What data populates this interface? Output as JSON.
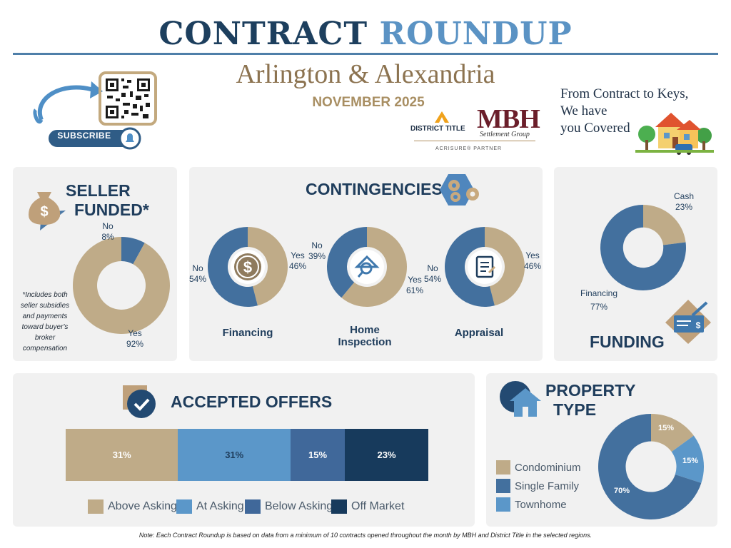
{
  "header": {
    "title_part1": "CONTRACT",
    "title_part2": "ROUNDUP",
    "region": "Arlington & Alexandria",
    "month": "NOVEMBER 2025",
    "subscribe_label": "SUBSCRIBE",
    "tagline": [
      "From Contract to Keys,",
      "We have",
      "you Covered"
    ],
    "logos": {
      "district_title": "DISTRICT TITLE",
      "mbh": "MBH",
      "mbh_sub": "Settlement Group",
      "partner": "ACRISURE® PARTNER"
    }
  },
  "colors": {
    "tan": "#bfab88",
    "blue": "#43709e",
    "light_blue": "#5b97c9",
    "mid_blue": "#40689a",
    "navy": "#173a5c",
    "card_bg": "#f1f1f1"
  },
  "seller_funded": {
    "heading_line1": "SELLER",
    "heading_line2": "FUNDED*",
    "footnote": [
      "*Includes both",
      "seller subsidies",
      "and payments",
      "toward buyer's",
      "broker",
      "compensation"
    ],
    "no_label": "No",
    "no_pct": "8%",
    "yes_label": "Yes",
    "yes_pct": "92%"
  },
  "contingencies": {
    "heading": "CONTINGENCIES",
    "financing": {
      "caption": "Financing",
      "no_label": "No",
      "no_pct": "54%",
      "yes_label": "Yes",
      "yes_pct": "46%"
    },
    "home_inspection": {
      "caption_line1": "Home",
      "caption_line2": "Inspection",
      "no_label": "No",
      "no_pct": "39%",
      "yes_label": "Yes",
      "yes_pct": "61%"
    },
    "appraisal": {
      "caption": "Appraisal",
      "no_label": "No",
      "no_pct": "54%",
      "yes_label": "Yes",
      "yes_pct": "46%"
    }
  },
  "funding": {
    "heading": "FUNDING",
    "cash_label": "Cash",
    "cash_pct": "23%",
    "financing_label": "Financing",
    "financing_pct": "77%"
  },
  "accepted_offers": {
    "heading": "ACCEPTED OFFERS",
    "segments": [
      {
        "label": "Above Asking",
        "pct_text": "31%"
      },
      {
        "label": "At Asking",
        "pct_text": "31%"
      },
      {
        "label": "Below Asking",
        "pct_text": "15%"
      },
      {
        "label": "Off Market",
        "pct_text": "23%"
      }
    ]
  },
  "property_type": {
    "heading_line1": "PROPERTY",
    "heading_line2": "TYPE",
    "legend": [
      "Condominium",
      "Single Family",
      "Townhome"
    ],
    "condo_pct": "15%",
    "townhome_pct": "15%",
    "single_family_pct": "70%"
  },
  "note": "Note: Each Contract Roundup is based on data from a minimum of 10 contracts opened throughout the month by MBH and District Title in the selected regions.",
  "chart_data": [
    {
      "type": "pie",
      "categories": [
        "Yes",
        "No"
      ],
      "values": [
        92,
        8
      ]
    },
    {
      "type": "pie",
      "categories": [
        "Yes",
        "No"
      ],
      "values": [
        46,
        54
      ],
      "title": "Financing"
    },
    {
      "type": "pie",
      "categories": [
        "Yes",
        "No"
      ],
      "values": [
        61,
        39
      ],
      "title": "Home Inspection"
    },
    {
      "type": "pie",
      "categories": [
        "Yes",
        "No"
      ],
      "values": [
        46,
        54
      ],
      "title": "Appraisal"
    },
    {
      "type": "pie",
      "categories": [
        "Cash",
        "Financing"
      ],
      "values": [
        23,
        77
      ],
      "title": "FUNDING"
    },
    {
      "type": "bar",
      "categories": [
        "Above Asking",
        "At Asking",
        "Below Asking",
        "Off Market"
      ],
      "values": [
        31,
        31,
        15,
        23
      ],
      "title": "ACCEPTED OFFERS"
    },
    {
      "type": "pie",
      "categories": [
        "Condominium",
        "Townhome",
        "Single Family"
      ],
      "values": [
        15,
        15,
        70
      ],
      "title": "PROPERTY TYPE"
    }
  ]
}
